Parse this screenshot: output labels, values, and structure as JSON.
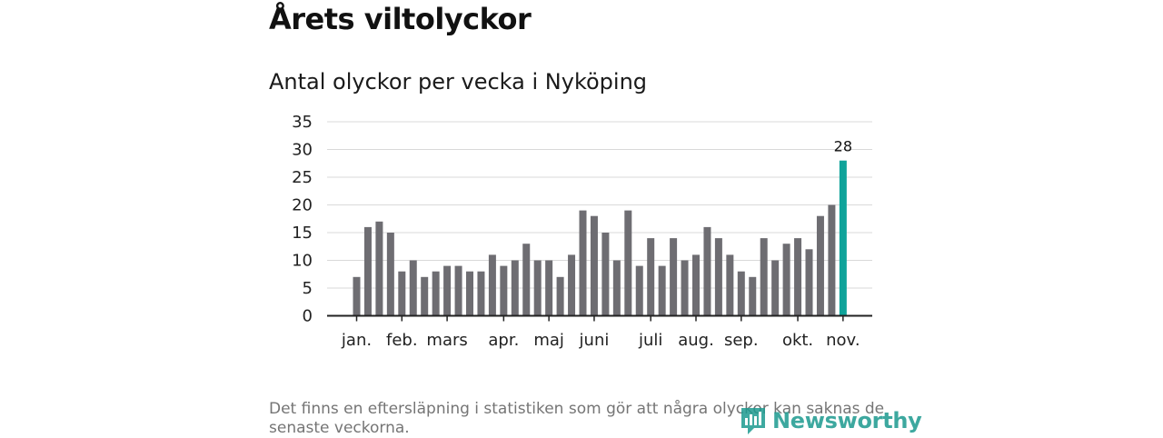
{
  "title": "Årets viltolyckor",
  "subtitle": "Antal olyckor per vecka i Nyköping",
  "footnote": "Det finns en eftersläpning i statistiken som gör att några olyckor kan saknas de senaste veckorna.",
  "brand": "Newsworthy",
  "colors": {
    "bar": "#6e6d72",
    "highlight": "#0fa39a",
    "grid": "#d9d9d9",
    "axis": "#222222",
    "brand": "#1c9a8f"
  },
  "chart_data": {
    "type": "bar",
    "title": "Antal olyckor per vecka i Nyköping",
    "xlabel": "",
    "ylabel": "",
    "ylim": [
      0,
      35
    ],
    "yticks": [
      "0",
      "5",
      "10",
      "15",
      "20",
      "25",
      "30",
      "35"
    ],
    "values": [
      7,
      16,
      17,
      15,
      8,
      10,
      7,
      8,
      9,
      9,
      8,
      8,
      11,
      9,
      10,
      13,
      10,
      10,
      7,
      11,
      19,
      18,
      15,
      10,
      19,
      9,
      14,
      9,
      14,
      10,
      11,
      16,
      14,
      11,
      8,
      7,
      14,
      10,
      13,
      14,
      12,
      18,
      20,
      28
    ],
    "highlight_index": 43,
    "highlight_label": "28",
    "month_ticks": [
      {
        "label": "jan.",
        "index": 0
      },
      {
        "label": "feb.",
        "index": 4
      },
      {
        "label": "mars",
        "index": 8
      },
      {
        "label": "apr.",
        "index": 13
      },
      {
        "label": "maj",
        "index": 17
      },
      {
        "label": "juni",
        "index": 21
      },
      {
        "label": "juli",
        "index": 26
      },
      {
        "label": "aug.",
        "index": 30
      },
      {
        "label": "sep.",
        "index": 34
      },
      {
        "label": "okt.",
        "index": 39
      },
      {
        "label": "nov.",
        "index": 43
      }
    ]
  }
}
